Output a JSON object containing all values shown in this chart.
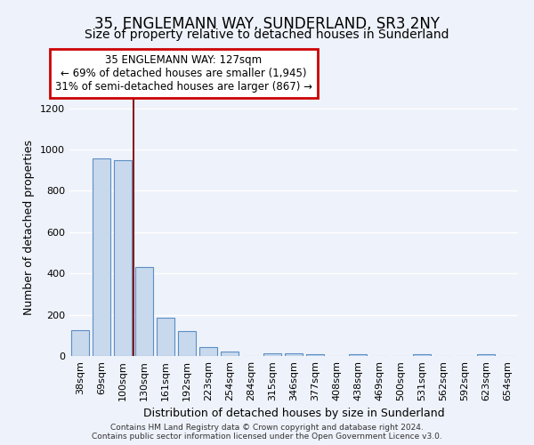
{
  "title": "35, ENGLEMANN WAY, SUNDERLAND, SR3 2NY",
  "subtitle": "Size of property relative to detached houses in Sunderland",
  "xlabel": "Distribution of detached houses by size in Sunderland",
  "ylabel": "Number of detached properties",
  "bar_labels": [
    "38sqm",
    "69sqm",
    "100sqm",
    "130sqm",
    "161sqm",
    "192sqm",
    "223sqm",
    "254sqm",
    "284sqm",
    "315sqm",
    "346sqm",
    "377sqm",
    "408sqm",
    "438sqm",
    "469sqm",
    "500sqm",
    "531sqm",
    "562sqm",
    "592sqm",
    "623sqm",
    "654sqm"
  ],
  "bar_values": [
    125,
    955,
    950,
    430,
    185,
    120,
    43,
    20,
    0,
    15,
    15,
    10,
    0,
    8,
    0,
    0,
    8,
    0,
    0,
    8,
    0
  ],
  "bar_color": "#c9d9ed",
  "bar_edge_color": "#5b8ec4",
  "vline_color": "#8b1a1a",
  "annotation_text": "35 ENGLEMANN WAY: 127sqm\n← 69% of detached houses are smaller (1,945)\n31% of semi-detached houses are larger (867) →",
  "annotation_box_color": "#ffffff",
  "annotation_box_edge": "#cc0000",
  "ylim": [
    0,
    1250
  ],
  "yticks": [
    0,
    200,
    400,
    600,
    800,
    1000,
    1200
  ],
  "footer": "Contains HM Land Registry data © Crown copyright and database right 2024.\nContains public sector information licensed under the Open Government Licence v3.0.",
  "bg_color": "#eef2fa",
  "grid_color": "#ffffff",
  "title_fontsize": 12,
  "subtitle_fontsize": 10,
  "ylabel_fontsize": 9,
  "xlabel_fontsize": 9,
  "tick_fontsize": 8,
  "annot_fontsize": 8.5,
  "footer_fontsize": 6.5
}
